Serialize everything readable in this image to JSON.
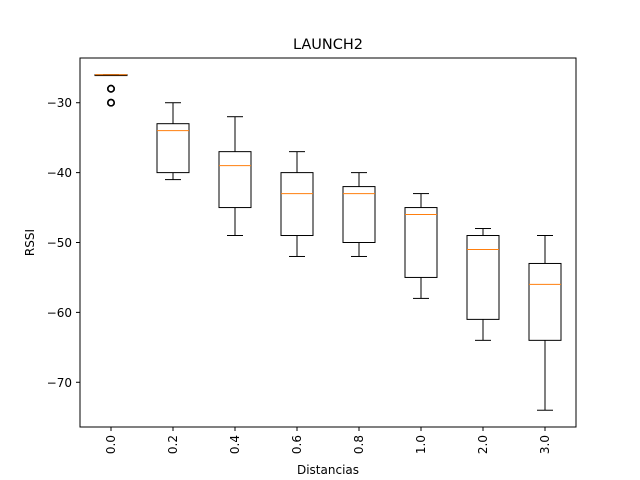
{
  "chart_data": {
    "type": "box",
    "title": "LAUNCH2",
    "xlabel": "Distancias",
    "ylabel": "RSSI",
    "ylim": [
      -76.4,
      -23.6
    ],
    "yticks": [
      -30,
      -40,
      -50,
      -60,
      -70
    ],
    "ytick_labels": [
      "−30",
      "−40",
      "−50",
      "−60",
      "−70"
    ],
    "categories": [
      "0.0",
      "0.2",
      "0.4",
      "0.6",
      "0.8",
      "1.0",
      "2.0",
      "3.0"
    ],
    "boxes": [
      {
        "category": "0.0",
        "whisker_low": -26,
        "q1": -26,
        "median": -26,
        "q3": -26,
        "whisker_high": -26,
        "outliers": [
          -28,
          -28,
          -30,
          -30
        ]
      },
      {
        "category": "0.2",
        "whisker_low": -41,
        "q1": -40,
        "median": -34,
        "q3": -33,
        "whisker_high": -30,
        "outliers": []
      },
      {
        "category": "0.4",
        "whisker_low": -49,
        "q1": -45,
        "median": -39,
        "q3": -37,
        "whisker_high": -32,
        "outliers": []
      },
      {
        "category": "0.6",
        "whisker_low": -52,
        "q1": -49,
        "median": -43,
        "q3": -40,
        "whisker_high": -37,
        "outliers": []
      },
      {
        "category": "0.8",
        "whisker_low": -52,
        "q1": -50,
        "median": -43,
        "q3": -42,
        "whisker_high": -40,
        "outliers": []
      },
      {
        "category": "1.0",
        "whisker_low": -58,
        "q1": -55,
        "median": -46,
        "q3": -45,
        "whisker_high": -43,
        "outliers": []
      },
      {
        "category": "2.0",
        "whisker_low": -64,
        "q1": -61,
        "median": -51,
        "q3": -49,
        "whisker_high": -48,
        "outliers": []
      },
      {
        "category": "3.0",
        "whisker_low": -74,
        "q1": -64,
        "median": -56,
        "q3": -53,
        "whisker_high": -49,
        "outliers": []
      }
    ],
    "colors": {
      "box": "#000000",
      "median": "#ff7f0e",
      "axes": "#000000"
    },
    "grid": false,
    "xtick_rotation": "vertical"
  }
}
